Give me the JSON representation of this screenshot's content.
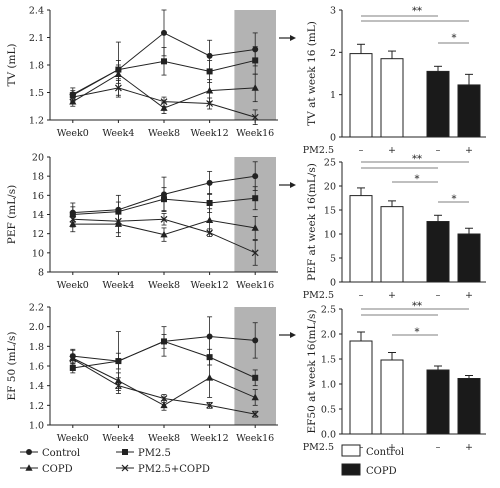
{
  "chart_data": [
    {
      "type": "line",
      "ylabel": "TV (mL)",
      "x": [
        "Week0",
        "Week4",
        "Week8",
        "Week12",
        "Week16"
      ],
      "ylim": [
        1.2,
        2.4
      ],
      "yticks": [
        "1.2",
        "1.5",
        "1.8",
        "2.1",
        "2.4"
      ],
      "shaded_category": "Week16",
      "series": [
        {
          "name": "Control",
          "values": [
            1.48,
            1.75,
            2.15,
            1.9,
            1.97
          ],
          "err": [
            0.07,
            0.3,
            0.25,
            0.17,
            0.18
          ]
        },
        {
          "name": "PM2.5",
          "values": [
            1.47,
            1.75,
            1.84,
            1.73,
            1.85
          ],
          "err": [
            0.05,
            0.1,
            0.15,
            0.12,
            0.15
          ]
        },
        {
          "name": "COPD",
          "values": [
            1.4,
            1.7,
            1.33,
            1.52,
            1.55
          ],
          "err": [
            0.05,
            0.1,
            0.06,
            0.12,
            0.15
          ]
        },
        {
          "name": "PM2.5+COPD",
          "values": [
            1.45,
            1.55,
            1.4,
            1.38,
            1.23
          ],
          "err": [
            0.05,
            0.08,
            0.05,
            0.06,
            0.08
          ]
        }
      ]
    },
    {
      "type": "bar",
      "ylabel": "TV at week 16 (mL)",
      "ylim": [
        0,
        3
      ],
      "yticks": [
        "0",
        "1",
        "2",
        "3"
      ],
      "values": [
        1.97,
        1.85,
        1.55,
        1.23
      ],
      "err": [
        0.22,
        0.18,
        0.12,
        0.25
      ],
      "pm25": [
        "–",
        "+",
        "–",
        "+"
      ],
      "significance": [
        "**",
        "*"
      ]
    },
    {
      "type": "line",
      "ylabel": "PEF (mL/s)",
      "x": [
        "Week0",
        "Week4",
        "Week8",
        "Week12",
        "Week16"
      ],
      "ylim": [
        8,
        20
      ],
      "yticks": [
        "8",
        "10",
        "12",
        "14",
        "16",
        "18",
        "20"
      ],
      "shaded_category": "Week16",
      "series": [
        {
          "name": "Control",
          "values": [
            14.2,
            14.5,
            16.1,
            17.3,
            18.0
          ],
          "err": [
            1.0,
            1.5,
            1.8,
            1.2,
            1.5
          ]
        },
        {
          "name": "PM2.5",
          "values": [
            14.0,
            14.3,
            15.6,
            15.2,
            15.7
          ],
          "err": [
            0.8,
            1.0,
            1.2,
            1.0,
            1.2
          ]
        },
        {
          "name": "COPD",
          "values": [
            13.0,
            13.0,
            11.9,
            13.4,
            12.6
          ],
          "err": [
            0.8,
            1.3,
            0.7,
            1.2,
            1.2
          ]
        },
        {
          "name": "PM2.5+COPD",
          "values": [
            13.5,
            13.3,
            13.5,
            12.1,
            10.0
          ],
          "err": [
            0.8,
            1.2,
            0.6,
            0.4,
            1.3
          ]
        }
      ]
    },
    {
      "type": "bar",
      "ylabel": "PEF at week 16(mL/s)",
      "ylim": [
        0,
        25
      ],
      "yticks": [
        "0",
        "5",
        "10",
        "15",
        "20",
        "25"
      ],
      "values": [
        18.0,
        15.7,
        12.6,
        10.0
      ],
      "err": [
        1.6,
        1.2,
        1.3,
        1.2
      ],
      "pm25": [
        "–",
        "+",
        "–",
        "+"
      ],
      "significance": [
        "**",
        "*",
        "*"
      ]
    },
    {
      "type": "line",
      "ylabel": "EF 50 (mL/s)",
      "x": [
        "Week0",
        "Week4",
        "Week8",
        "Week12",
        "Week16"
      ],
      "ylim": [
        1.0,
        2.2
      ],
      "yticks": [
        "1.0",
        "1.2",
        "1.4",
        "1.6",
        "1.8",
        "2.0",
        "2.2"
      ],
      "shaded_category": "Week16",
      "series": [
        {
          "name": "Control",
          "values": [
            1.7,
            1.65,
            1.85,
            1.9,
            1.86
          ],
          "err": [
            0.07,
            0.3,
            0.15,
            0.2,
            0.18
          ]
        },
        {
          "name": "PM2.5",
          "values": [
            1.58,
            1.65,
            1.85,
            1.69,
            1.48
          ],
          "err": [
            0.05,
            0.08,
            0.07,
            0.08,
            0.08
          ]
        },
        {
          "name": "COPD",
          "values": [
            1.68,
            1.45,
            1.2,
            1.48,
            1.28
          ],
          "err": [
            0.08,
            0.08,
            0.05,
            0.2,
            0.08
          ]
        },
        {
          "name": "PM2.5+COPD",
          "values": [
            1.67,
            1.4,
            1.27,
            1.2,
            1.11
          ],
          "err": [
            0.05,
            0.08,
            0.04,
            0.03,
            0.03
          ]
        }
      ]
    },
    {
      "type": "bar",
      "ylabel": "EF50 at week 16(mL/s)",
      "ylim": [
        0.0,
        2.5
      ],
      "yticks": [
        "0.0",
        "0.5",
        "1.0",
        "1.5",
        "2.0",
        "2.5"
      ],
      "values": [
        1.86,
        1.48,
        1.28,
        1.11
      ],
      "err": [
        0.18,
        0.15,
        0.08,
        0.06
      ],
      "pm25": [
        "–",
        "+",
        "–",
        "+"
      ],
      "significance": [
        "**",
        "*"
      ]
    }
  ],
  "legend_lines": [
    "Control",
    "PM2.5",
    "COPD",
    "PM2.5+COPD"
  ],
  "legend_bars": [
    "Control",
    "COPD"
  ],
  "pm25_label": "PM2.5",
  "colors": {
    "line": "#222222",
    "shade": "#b3b3b3",
    "bar_copd": "#1a1a1a",
    "bar_control": "#ffffff"
  }
}
